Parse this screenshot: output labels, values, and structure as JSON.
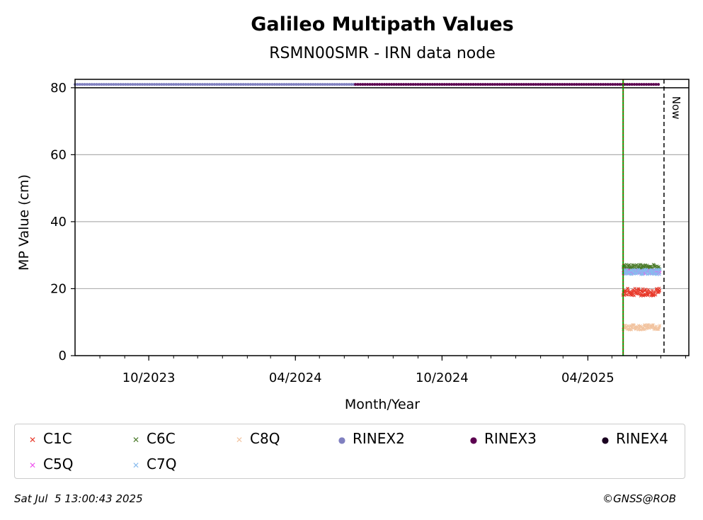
{
  "chart_data": {
    "type": "scatter",
    "title": "Galileo Multipath Values",
    "subtitle": "RSMN00SMR - IRN data node",
    "xlabel": "Month/Year",
    "ylabel": "MP Value (cm)",
    "ylim": [
      0,
      80
    ],
    "xlim": [
      "2023-07-01",
      "2025-08-05"
    ],
    "x_ticks": [
      "10/2023",
      "04/2024",
      "10/2024",
      "04/2025"
    ],
    "x_tick_dates": [
      "2023-10-01",
      "2024-04-01",
      "2024-10-01",
      "2025-04-01"
    ],
    "y_ticks": [
      0,
      20,
      40,
      60,
      80
    ],
    "grid": "horizontal",
    "legend_placement": "below",
    "now_label": "Now",
    "now_date": "2025-07-05",
    "event_line_date": "2025-05-15",
    "series": [
      {
        "name": "C1C",
        "marker": "x",
        "color": "#e8392a",
        "x_range": [
          "2025-05-15",
          "2025-06-30"
        ],
        "mean": 19,
        "spread": 1.2
      },
      {
        "name": "C6C",
        "marker": "x",
        "color": "#4a7a2a",
        "x_range": [
          "2025-05-15",
          "2025-06-30"
        ],
        "mean": 26.5,
        "spread": 0.8
      },
      {
        "name": "C8Q",
        "marker": "x",
        "color": "#f2c4a0",
        "x_range": [
          "2025-05-15",
          "2025-06-30"
        ],
        "mean": 8.5,
        "spread": 0.8
      },
      {
        "name": "C5Q",
        "marker": "x",
        "color": "#ee55ee",
        "x_range": [
          "2025-05-15",
          "2025-06-30"
        ],
        "mean": 25,
        "spread": 0.6
      },
      {
        "name": "C7Q",
        "marker": "x",
        "color": "#88bbee",
        "x_range": [
          "2025-05-15",
          "2025-06-30"
        ],
        "mean": 25,
        "spread": 0.8
      },
      {
        "name": "RINEX2",
        "marker": "dot",
        "color": "#8080c0",
        "x_range": [
          "2023-07-01",
          "2024-06-15"
        ],
        "value": 81
      },
      {
        "name": "RINEX3",
        "marker": "dot",
        "color": "#5c0050",
        "x_range": [
          "2024-06-15",
          "2025-06-30"
        ],
        "value": 81
      },
      {
        "name": "RINEX4",
        "marker": "dot",
        "color": "#1a0020",
        "x_range": [],
        "value": 81
      }
    ]
  },
  "legend": {
    "items": [
      {
        "label": "C1C",
        "symbol": "✕",
        "color": "#e8392a"
      },
      {
        "label": "C6C",
        "symbol": "✕",
        "color": "#4a7a2a"
      },
      {
        "label": "C8Q",
        "symbol": "✕",
        "color": "#f2c4a0"
      },
      {
        "label": "RINEX2",
        "symbol": "●",
        "color": "#8080c0"
      },
      {
        "label": "RINEX3",
        "symbol": "●",
        "color": "#5c0050"
      },
      {
        "label": "RINEX4",
        "symbol": "●",
        "color": "#1a0020"
      },
      {
        "label": "C5Q",
        "symbol": "✕",
        "color": "#ee55ee"
      },
      {
        "label": "C7Q",
        "symbol": "✕",
        "color": "#88bbee"
      }
    ]
  },
  "footer": {
    "timestamp": "Sat Jul  5 13:00:43 2025",
    "credit": "©GNSS@ROB"
  }
}
